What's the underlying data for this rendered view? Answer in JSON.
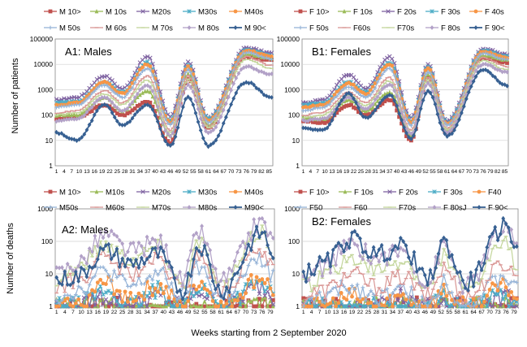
{
  "figure": {
    "xlabel": "Weeks starting from 2 September 2020",
    "ylabel_top": "Number of patients",
    "ylabel_bottom": "Number  of  deaths"
  },
  "series_colors": [
    "#c0504d",
    "#9bbb59",
    "#8064a2",
    "#4bacc6",
    "#f79646",
    "#95b3d7",
    "#d99694",
    "#c3d69b",
    "#b2a1c7",
    "#376092"
  ],
  "series_markers": [
    "square",
    "triangle",
    "x",
    "star",
    "circle",
    "plus",
    "dash",
    "dash",
    "diamond",
    "diamond"
  ],
  "chart_data": [
    {
      "id": "A1",
      "type": "line",
      "title": "A1: Males",
      "ylabel": "Number of patients",
      "yscale": "log",
      "ylim": [
        1,
        100000
      ],
      "y_ticks": [
        "1",
        "10",
        "100",
        "1000",
        "10000",
        "100000"
      ],
      "x_ticks": [
        "1",
        "4",
        "7",
        "10",
        "13",
        "16",
        "19",
        "22",
        "25",
        "28",
        "31",
        "34",
        "37",
        "40",
        "43",
        "46",
        "49",
        "52",
        "55",
        "58",
        "61",
        "64",
        "67",
        "70",
        "73",
        "76",
        "79",
        "82",
        "85"
      ],
      "legend": [
        "M 10>",
        "M 10s",
        "M20s",
        "M30s",
        "M40s",
        "M 50s",
        "M 60s",
        "M 70s",
        "M 80s",
        "M 90<"
      ],
      "series_peaks": [
        {
          "name": "M 10>",
          "values": [
            70,
            80,
            250,
            100,
            350,
            8,
            2500,
            30,
            20000,
            15000
          ]
        },
        {
          "name": "M 10s",
          "values": [
            100,
            100,
            500,
            150,
            900,
            15,
            4000,
            40,
            25000,
            18000
          ]
        },
        {
          "name": "M20s",
          "values": [
            400,
            500,
            3500,
            1100,
            20000,
            90,
            12000,
            80,
            45000,
            28000
          ]
        },
        {
          "name": "M30s",
          "values": [
            300,
            350,
            2000,
            800,
            12000,
            60,
            9000,
            70,
            38000,
            22000
          ]
        },
        {
          "name": "M40s",
          "values": [
            250,
            300,
            2000,
            700,
            10000,
            50,
            8000,
            60,
            35000,
            20000
          ]
        },
        {
          "name": "M 50s",
          "values": [
            200,
            250,
            1500,
            500,
            7000,
            40,
            6000,
            50,
            30000,
            16000
          ]
        },
        {
          "name": "M 60s",
          "values": [
            120,
            150,
            900,
            300,
            3500,
            25,
            3500,
            35,
            20000,
            9000
          ]
        },
        {
          "name": "M 70s",
          "values": [
            100,
            120,
            700,
            250,
            2500,
            20,
            2500,
            30,
            15000,
            7000
          ]
        },
        {
          "name": "M 80s",
          "values": [
            60,
            70,
            500,
            150,
            1500,
            15,
            1500,
            20,
            8000,
            4000
          ]
        },
        {
          "name": "M 90<",
          "values": [
            20,
            10,
            250,
            40,
            250,
            6,
            500,
            6,
            2000,
            500
          ]
        }
      ]
    },
    {
      "id": "B1",
      "type": "line",
      "title": "B1: Females",
      "yscale": "log",
      "ylim": [
        1,
        100000
      ],
      "y_ticks": [
        "1",
        "10",
        "100",
        "1000",
        "10000",
        "100000"
      ],
      "x_ticks": [
        "1",
        "4",
        "7",
        "10",
        "13",
        "16",
        "19",
        "22",
        "25",
        "28",
        "31",
        "34",
        "37",
        "40",
        "43",
        "46",
        "49",
        "52",
        "55",
        "58",
        "61",
        "64",
        "67",
        "70",
        "73",
        "76",
        "79",
        "82",
        "85"
      ],
      "legend": [
        "F 10>",
        "F 10s",
        "F 20s",
        "F 30s",
        "F 40s",
        "F 50s",
        "F60s",
        "F70s",
        "F 80s",
        "F 90<"
      ],
      "series_peaks": [
        {
          "name": "F 10>",
          "values": [
            60,
            50,
            250,
            100,
            400,
            10,
            3000,
            20,
            18000,
            12000
          ]
        },
        {
          "name": "F 10s",
          "values": [
            80,
            70,
            400,
            150,
            800,
            15,
            4000,
            25,
            22000,
            15000
          ]
        },
        {
          "name": "F 20s",
          "values": [
            300,
            400,
            4000,
            1100,
            20000,
            80,
            10000,
            60,
            40000,
            25000
          ]
        },
        {
          "name": "F 30s",
          "values": [
            250,
            300,
            2000,
            800,
            12000,
            60,
            8000,
            50,
            35000,
            20000
          ]
        },
        {
          "name": "F 40s",
          "values": [
            200,
            250,
            1800,
            700,
            10000,
            50,
            7000,
            45,
            32000,
            18000
          ]
        },
        {
          "name": "F 50s",
          "values": [
            150,
            200,
            1300,
            500,
            7000,
            40,
            5000,
            40,
            28000,
            15000
          ]
        },
        {
          "name": "F60s",
          "values": [
            100,
            130,
            800,
            300,
            3000,
            25,
            3000,
            30,
            18000,
            8000
          ]
        },
        {
          "name": "F70s",
          "values": [
            80,
            100,
            600,
            250,
            2200,
            20,
            2500,
            25,
            14000,
            6000
          ]
        },
        {
          "name": "F 80s",
          "values": [
            60,
            70,
            500,
            180,
            1600,
            18,
            1800,
            20,
            10000,
            5000
          ]
        },
        {
          "name": "F 90<",
          "values": [
            30,
            25,
            700,
            80,
            600,
            12,
            900,
            15,
            6000,
            1500
          ]
        }
      ]
    },
    {
      "id": "A2",
      "type": "line",
      "title": "A2: Males",
      "ylabel": "Number  of  deaths",
      "yscale": "log",
      "ylim": [
        1,
        1000
      ],
      "y_ticks": [
        "1",
        "10",
        "100",
        "1000"
      ],
      "x_ticks": [
        "1",
        "4",
        "7",
        "10",
        "13",
        "16",
        "19",
        "22",
        "25",
        "28",
        "31",
        "34",
        "37",
        "40",
        "43",
        "46",
        "49",
        "52",
        "55",
        "58",
        "61",
        "64",
        "67",
        "70",
        "73",
        "76",
        "79"
      ],
      "legend": [
        "M 10>",
        "M10s",
        "M20s",
        "M30s",
        "M40s",
        "M50s",
        "M60s",
        "M70s",
        "M80s",
        "M90<"
      ],
      "series_peaks": [
        {
          "name": "M 10>",
          "values": [
            1,
            1,
            1,
            1,
            1,
            1,
            1,
            1,
            1,
            1
          ]
        },
        {
          "name": "M10s",
          "values": [
            1,
            1,
            1,
            1,
            1,
            1,
            1,
            1,
            1,
            1
          ]
        },
        {
          "name": "M20s",
          "values": [
            1,
            1,
            2,
            1,
            2,
            1,
            3,
            1,
            4,
            2
          ]
        },
        {
          "name": "M30s",
          "values": [
            1,
            1,
            3,
            1,
            3,
            1,
            4,
            1,
            5,
            2
          ]
        },
        {
          "name": "M40s",
          "values": [
            1,
            1,
            5,
            2,
            4,
            1,
            6,
            1,
            8,
            3
          ]
        },
        {
          "name": "M50s",
          "values": [
            2,
            3,
            12,
            4,
            10,
            2,
            15,
            2,
            25,
            8
          ]
        },
        {
          "name": "M60s",
          "values": [
            4,
            6,
            30,
            10,
            25,
            3,
            40,
            3,
            60,
            20
          ]
        },
        {
          "name": "M70s",
          "values": [
            8,
            15,
            80,
            30,
            70,
            5,
            100,
            4,
            200,
            50
          ]
        },
        {
          "name": "M80s",
          "values": [
            10,
            20,
            150,
            50,
            100,
            6,
            200,
            6,
            400,
            100
          ]
        },
        {
          "name": "M90<",
          "values": [
            6,
            8,
            50,
            20,
            40,
            3,
            80,
            3,
            180,
            40
          ]
        }
      ]
    },
    {
      "id": "B2",
      "type": "line",
      "title": "B2: Females",
      "yscale": "log",
      "ylim": [
        1,
        1000
      ],
      "y_ticks": [
        "1",
        "10",
        "100",
        "1000"
      ],
      "x_ticks": [
        "1",
        "4",
        "7",
        "10",
        "13",
        "16",
        "19",
        "22",
        "25",
        "28",
        "31",
        "34",
        "37",
        "40",
        "43",
        "46",
        "49",
        "52",
        "55",
        "58",
        "61",
        "64",
        "67",
        "70",
        "73",
        "76",
        "79"
      ],
      "legend": [
        "F 10>",
        "F 10s",
        "F 20s",
        "F 30s",
        "F40",
        "F50",
        "F60",
        "F70s",
        "F 80sJ",
        "F 90<"
      ],
      "series_peaks": [
        {
          "name": "F 10>",
          "values": [
            1,
            1,
            1,
            1,
            1,
            1,
            1,
            1,
            1,
            1
          ]
        },
        {
          "name": "F 10s",
          "values": [
            1,
            1,
            1,
            1,
            1,
            1,
            1,
            1,
            1,
            1
          ]
        },
        {
          "name": "F 20s",
          "values": [
            1,
            1,
            1,
            1,
            2,
            1,
            1,
            1,
            2,
            1
          ]
        },
        {
          "name": "F 30s",
          "values": [
            1,
            1,
            1,
            1,
            1,
            1,
            2,
            1,
            2,
            1
          ]
        },
        {
          "name": "F40",
          "values": [
            1,
            1,
            2,
            1,
            2,
            1,
            3,
            1,
            4,
            2
          ]
        },
        {
          "name": "F50",
          "values": [
            1,
            2,
            4,
            2,
            3,
            1,
            6,
            1,
            8,
            3
          ]
        },
        {
          "name": "F60",
          "values": [
            2,
            3,
            10,
            4,
            8,
            2,
            15,
            2,
            20,
            8
          ]
        },
        {
          "name": "F70s",
          "values": [
            4,
            8,
            30,
            12,
            25,
            3,
            40,
            3,
            80,
            20
          ]
        },
        {
          "name": "F 80sJ",
          "values": [
            6,
            15,
            80,
            30,
            50,
            5,
            70,
            4,
            250,
            60
          ]
        },
        {
          "name": "F 90<",
          "values": [
            10,
            20,
            120,
            40,
            70,
            6,
            90,
            5,
            300,
            80
          ]
        }
      ]
    }
  ]
}
